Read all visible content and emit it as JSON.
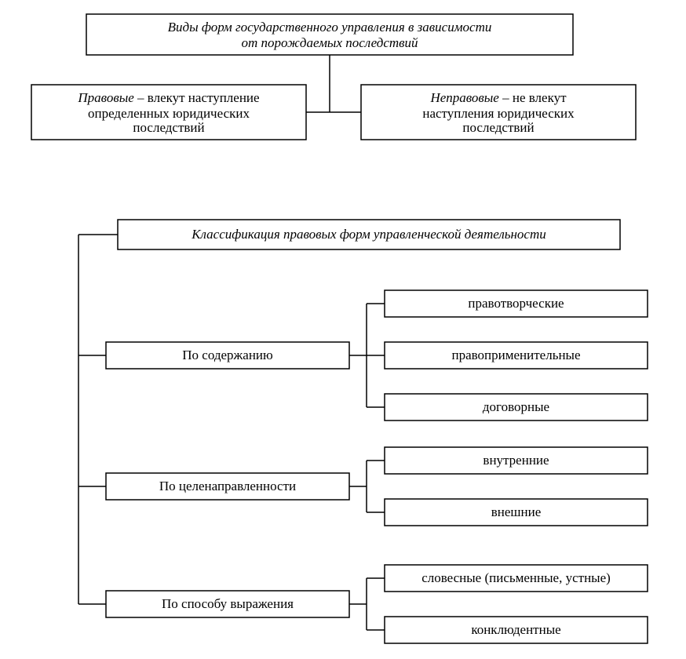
{
  "background_color": "#ffffff",
  "stroke_color": "#000000",
  "stroke_width": 1.5,
  "font_family": "Times New Roman, serif",
  "font_size_normal": 17,
  "diagram1": {
    "root": {
      "line1": "Виды форм государственного управления в зависимости",
      "line2": "от порождаемых последствий",
      "italic": true
    },
    "left": {
      "line1_italic": "Правовые",
      "line1_rest": " – влекут наступление",
      "line2": "определенных юридических",
      "line3": "последствий"
    },
    "right": {
      "line1_italic": "Неправовые",
      "line1_rest": " – не влекут",
      "line2": "наступления юридических",
      "line3": "последствий"
    }
  },
  "diagram2": {
    "root": {
      "text": "Классификация правовых форм управленческой деятельности",
      "italic": true
    },
    "groups": [
      {
        "label": "По содержанию",
        "items": [
          "правотворческие",
          "правоприменительные",
          "договорные"
        ]
      },
      {
        "label": "По целенаправленности",
        "items": [
          "внутренние",
          "внешние"
        ]
      },
      {
        "label": "По способу выражения",
        "items": [
          "словесные (письменные, устные)",
          "конклюдентные"
        ]
      }
    ]
  }
}
